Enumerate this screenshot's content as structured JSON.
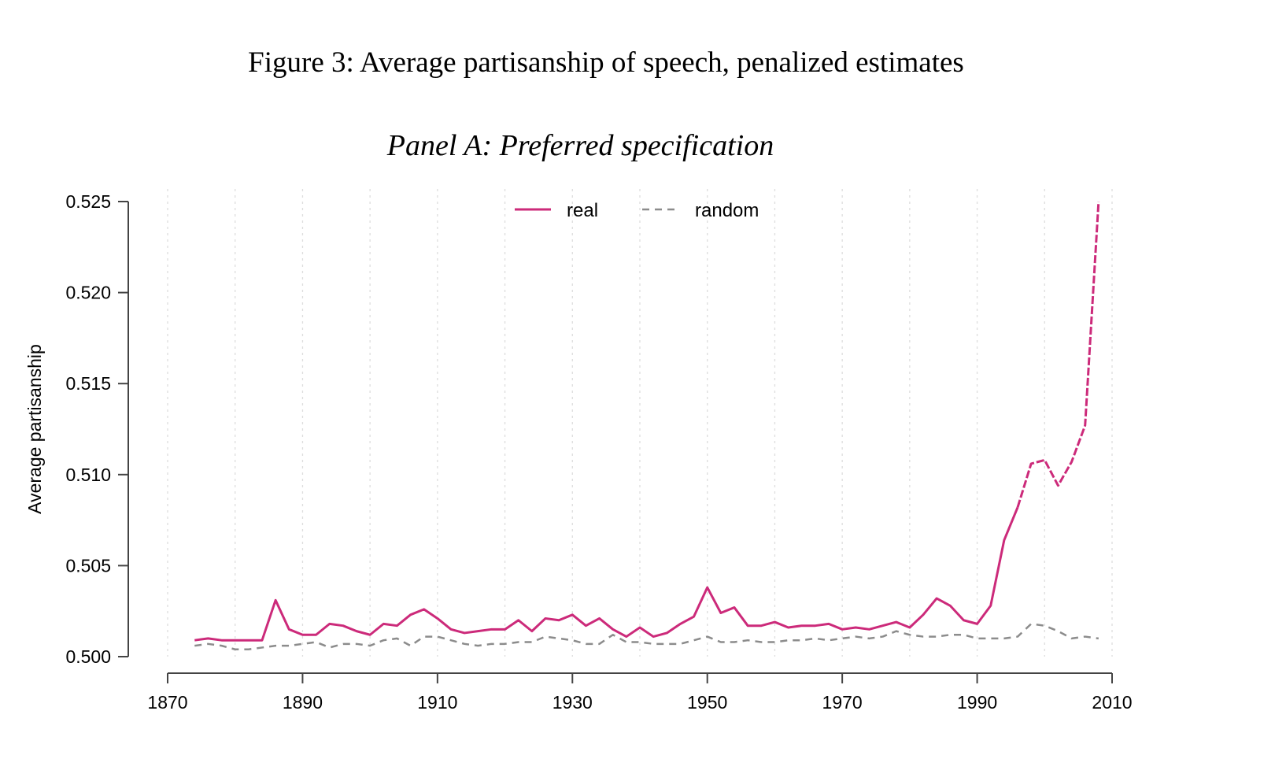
{
  "figure_title": "Figure 3: Average partisanship of speech, penalized estimates",
  "colors": {
    "real": "#cc2a7a",
    "random": "#8c8c8c",
    "axis": "#444444",
    "grid": "#dddddd"
  },
  "chart_data": {
    "type": "line",
    "title": "Panel A: Preferred specification",
    "xlabel": "",
    "ylabel": "Average partisanship",
    "xlim": [
      1870,
      2010
    ],
    "ylim": [
      0.5,
      0.525
    ],
    "x_ticks": [
      "1870",
      "1890",
      "1910",
      "1930",
      "1950",
      "1970",
      "1990",
      "2010"
    ],
    "y_ticks": [
      "0.500",
      "0.505",
      "0.510",
      "0.515",
      "0.520",
      "0.525"
    ],
    "vertical_grid": "dotted, every 10 years",
    "legend": {
      "placement": "top-center",
      "entries": [
        "real",
        "random"
      ]
    },
    "series": [
      {
        "name": "real",
        "style": "solid, dashed from 1996 onward",
        "x": [
          1874,
          1876,
          1878,
          1880,
          1882,
          1884,
          1886,
          1888,
          1890,
          1892,
          1894,
          1896,
          1898,
          1900,
          1902,
          1904,
          1906,
          1908,
          1910,
          1912,
          1914,
          1916,
          1918,
          1920,
          1922,
          1924,
          1926,
          1928,
          1930,
          1932,
          1934,
          1936,
          1938,
          1940,
          1942,
          1944,
          1946,
          1948,
          1950,
          1952,
          1954,
          1956,
          1958,
          1960,
          1962,
          1964,
          1966,
          1968,
          1970,
          1972,
          1974,
          1976,
          1978,
          1980,
          1982,
          1984,
          1986,
          1988,
          1990,
          1992,
          1994,
          1996,
          1998,
          2000,
          2002,
          2004,
          2006,
          2008
        ],
        "values": [
          0.5009,
          0.501,
          0.5009,
          0.5009,
          0.5009,
          0.5009,
          0.5031,
          0.5015,
          0.5012,
          0.5012,
          0.5018,
          0.5017,
          0.5014,
          0.5012,
          0.5018,
          0.5017,
          0.5023,
          0.5026,
          0.5021,
          0.5015,
          0.5013,
          0.5014,
          0.5015,
          0.5015,
          0.502,
          0.5014,
          0.5021,
          0.502,
          0.5023,
          0.5017,
          0.5021,
          0.5015,
          0.5011,
          0.5016,
          0.5011,
          0.5013,
          0.5018,
          0.5022,
          0.5038,
          0.5024,
          0.5027,
          0.5017,
          0.5017,
          0.5019,
          0.5016,
          0.5017,
          0.5017,
          0.5018,
          0.5015,
          0.5016,
          0.5015,
          0.5017,
          0.5019,
          0.5016,
          0.5023,
          0.5032,
          0.5028,
          0.502,
          0.5018,
          0.5028,
          0.5064,
          0.5082,
          0.5106,
          0.5108,
          0.5094,
          0.5107,
          0.5127,
          0.525
        ]
      },
      {
        "name": "random",
        "style": "dashed",
        "x": [
          1874,
          1876,
          1878,
          1880,
          1882,
          1884,
          1886,
          1888,
          1890,
          1892,
          1894,
          1896,
          1898,
          1900,
          1902,
          1904,
          1906,
          1908,
          1910,
          1912,
          1914,
          1916,
          1918,
          1920,
          1922,
          1924,
          1926,
          1928,
          1930,
          1932,
          1934,
          1936,
          1938,
          1940,
          1942,
          1944,
          1946,
          1948,
          1950,
          1952,
          1954,
          1956,
          1958,
          1960,
          1962,
          1964,
          1966,
          1968,
          1970,
          1972,
          1974,
          1976,
          1978,
          1980,
          1982,
          1984,
          1986,
          1988,
          1990,
          1992,
          1994,
          1996,
          1998,
          2000,
          2002,
          2004,
          2006,
          2008
        ],
        "values": [
          0.5006,
          0.5007,
          0.5006,
          0.5004,
          0.5004,
          0.5005,
          0.5006,
          0.5006,
          0.5007,
          0.5008,
          0.5005,
          0.5007,
          0.5007,
          0.5006,
          0.5009,
          0.501,
          0.5006,
          0.5011,
          0.5011,
          0.5009,
          0.5007,
          0.5006,
          0.5007,
          0.5007,
          0.5008,
          0.5008,
          0.5011,
          0.501,
          0.5009,
          0.5007,
          0.5007,
          0.5012,
          0.5008,
          0.5008,
          0.5007,
          0.5007,
          0.5007,
          0.5009,
          0.5011,
          0.5008,
          0.5008,
          0.5009,
          0.5008,
          0.5008,
          0.5009,
          0.5009,
          0.501,
          0.5009,
          0.501,
          0.5011,
          0.501,
          0.5011,
          0.5014,
          0.5012,
          0.5011,
          0.5011,
          0.5012,
          0.5012,
          0.501,
          0.501,
          0.501,
          0.5011,
          0.5018,
          0.5017,
          0.5014,
          0.501,
          0.5011,
          0.501
        ]
      }
    ]
  }
}
